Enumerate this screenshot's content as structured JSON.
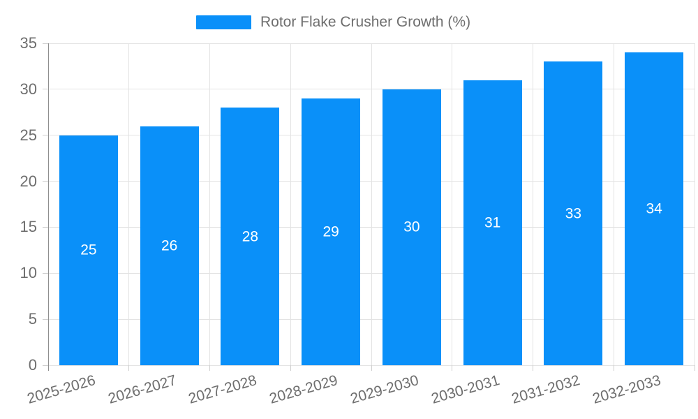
{
  "legend": {
    "label": "Rotor Flake Crusher Growth (%)",
    "swatch_color": "#0a90f9"
  },
  "chart_data": {
    "type": "bar",
    "title": "Rotor Flake Crusher Growth (%)",
    "categories": [
      "2025-2026",
      "2026-2027",
      "2027-2028",
      "2028-2029",
      "2029-2030",
      "2030-2031",
      "2031-2032",
      "2032-2033"
    ],
    "values": [
      25,
      26,
      28,
      29,
      30,
      31,
      33,
      34
    ],
    "value_labels": [
      "25",
      "26",
      "28",
      "29",
      "30",
      "31",
      "33",
      "34"
    ],
    "xlabel": "",
    "ylabel": "",
    "ylim": [
      0,
      35
    ],
    "y_ticks": [
      0,
      5,
      10,
      15,
      20,
      25,
      30,
      35
    ],
    "grid": true,
    "legend_position": "top",
    "value_label_position": "inside-middle",
    "bar_color": "#0a90f9",
    "value_label_color": "#ffffff",
    "axis_line_color": "#8f8f8f",
    "grid_color": "#e3e3e3",
    "tick_color": "#cfcfcf",
    "label_color": "#6e6e6e"
  }
}
